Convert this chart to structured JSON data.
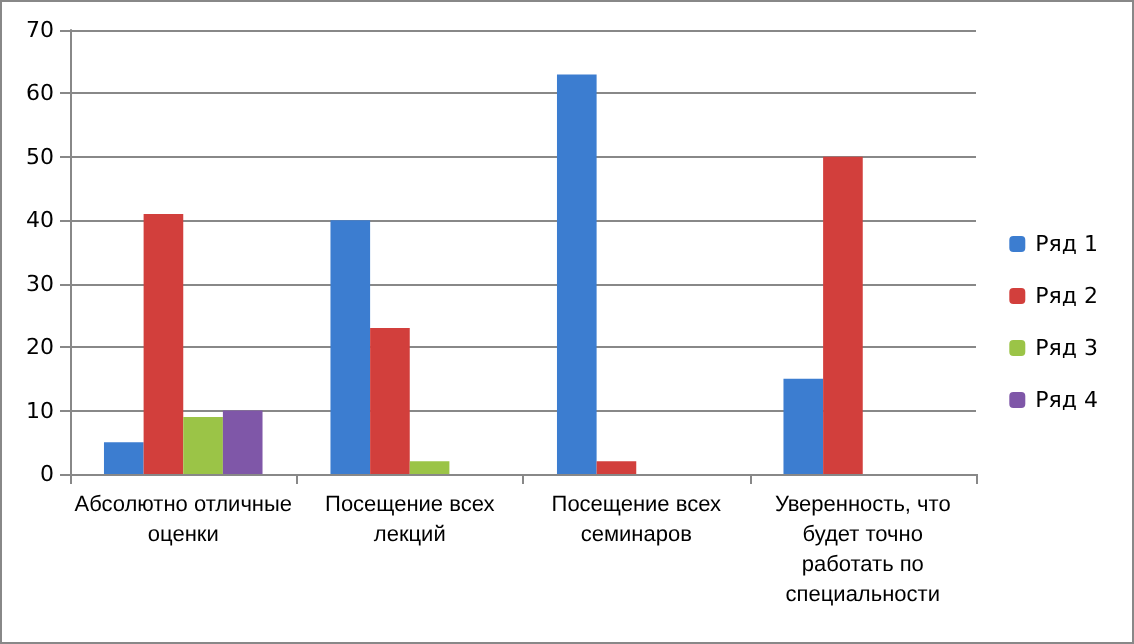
{
  "chart_data": {
    "type": "bar",
    "categories": [
      "Абсолютно отличные оценки",
      "Посещение всех лекций",
      "Посещение всех семинаров",
      "Уверенность, что будет точно работать по специальности"
    ],
    "series": [
      {
        "name": "Ряд 1",
        "color": "#3c7dd0",
        "values": [
          5,
          40,
          63,
          15
        ]
      },
      {
        "name": "Ряд 2",
        "color": "#d23f3c",
        "values": [
          41,
          23,
          2,
          50
        ]
      },
      {
        "name": "Ряд 3",
        "color": "#9bc447",
        "values": [
          9,
          2,
          null,
          null
        ]
      },
      {
        "name": "Ряд 4",
        "color": "#7f57a8",
        "values": [
          10,
          null,
          null,
          null
        ]
      }
    ],
    "ylim": [
      0,
      70
    ],
    "yticks": [
      0,
      10,
      20,
      30,
      40,
      50,
      60,
      70
    ],
    "grid": "y",
    "legend": "right"
  }
}
